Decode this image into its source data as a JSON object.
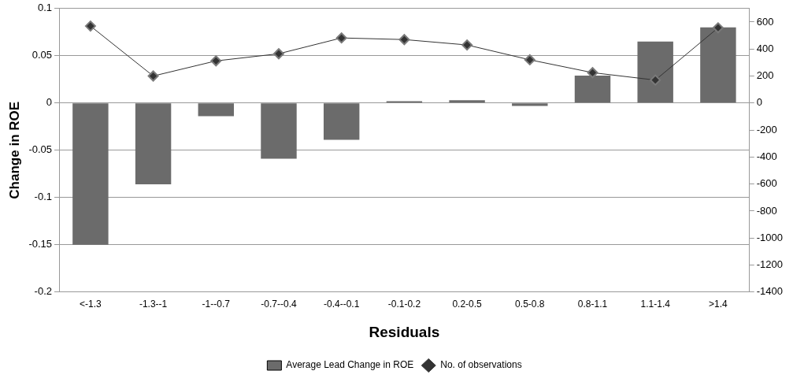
{
  "chart_data": {
    "type": "bar",
    "xlabel": "Residuals",
    "ylabel": "Change in ROE",
    "categories": [
      "<-1.3",
      "-1.3--1",
      "-1--0.7",
      "-0.7--0.4",
      "-0.4--0.1",
      "-0.1-0.2",
      "0.2-0.5",
      "0.5-0.8",
      "0.8-1.1",
      "1.1-1.4",
      ">1.4"
    ],
    "series": [
      {
        "name": "Average Lead Change in ROE",
        "color": "#6b6b6b",
        "values": [
          -0.15,
          -0.086,
          -0.014,
          -0.059,
          -0.039,
          0.002,
          0.003,
          -0.003,
          0.029,
          0.065,
          0.08
        ]
      },
      {
        "name": "No. of observations",
        "type": "line",
        "axis": "y2",
        "color": "#333333",
        "values": [
          570,
          200,
          312,
          365,
          482,
          470,
          430,
          320,
          225,
          170,
          557
        ]
      }
    ],
    "ylim": [
      -0.2,
      0.1
    ],
    "yticks": [
      -0.2,
      -0.15,
      -0.1,
      -0.05,
      0,
      0.05,
      0.1
    ],
    "y2lim": [
      -1400,
      700
    ],
    "y2ticks": [
      -1400,
      -1200,
      -1000,
      -800,
      -600,
      -400,
      -200,
      0,
      200,
      400,
      600
    ],
    "grid": "y",
    "legend": "bottom",
    "marker": "diamond",
    "line_style": "solid"
  }
}
